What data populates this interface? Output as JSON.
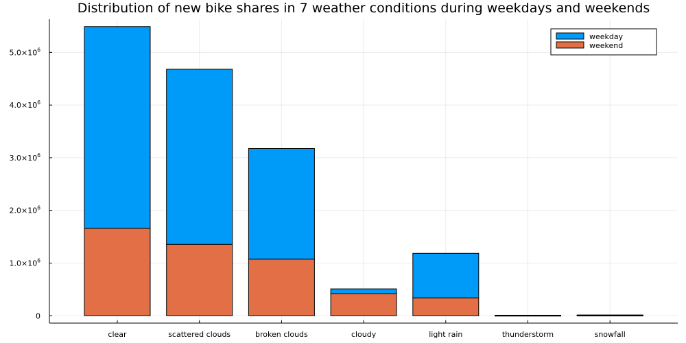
{
  "chart_data": {
    "type": "bar",
    "stacked": true,
    "title": "Distribution of new bike shares in 7 weather conditions during weekdays and weekends",
    "xlabel": "",
    "ylabel": "",
    "categories": [
      "clear",
      "scattered clouds",
      "broken clouds",
      "cloudy",
      "light rain",
      "thunderstorm",
      "snowfall"
    ],
    "series": [
      {
        "name": "weekend",
        "color": "#e26f46",
        "values": [
          1660000,
          1355000,
          1075000,
          420000,
          340000,
          4000,
          6000
        ]
      },
      {
        "name": "weekday",
        "color": "#009af9",
        "values": [
          3830000,
          3325000,
          2100000,
          90000,
          845000,
          6000,
          9000
        ]
      }
    ],
    "totals": [
      5490000,
      4680000,
      3175000,
      510000,
      1185000,
      10000,
      15000
    ],
    "legend_order": [
      "weekday",
      "weekend"
    ],
    "legend_position": "top-right",
    "ylim": [
      -140000,
      5630000
    ],
    "yticks": [
      {
        "value": 0,
        "mantissa": "0",
        "exp": ""
      },
      {
        "value": 1000000,
        "mantissa": "1.0×10",
        "exp": "6"
      },
      {
        "value": 2000000,
        "mantissa": "2.0×10",
        "exp": "6"
      },
      {
        "value": 3000000,
        "mantissa": "3.0×10",
        "exp": "6"
      },
      {
        "value": 4000000,
        "mantissa": "4.0×10",
        "exp": "6"
      },
      {
        "value": 5000000,
        "mantissa": "5.0×10",
        "exp": "6"
      }
    ],
    "grid": true
  }
}
